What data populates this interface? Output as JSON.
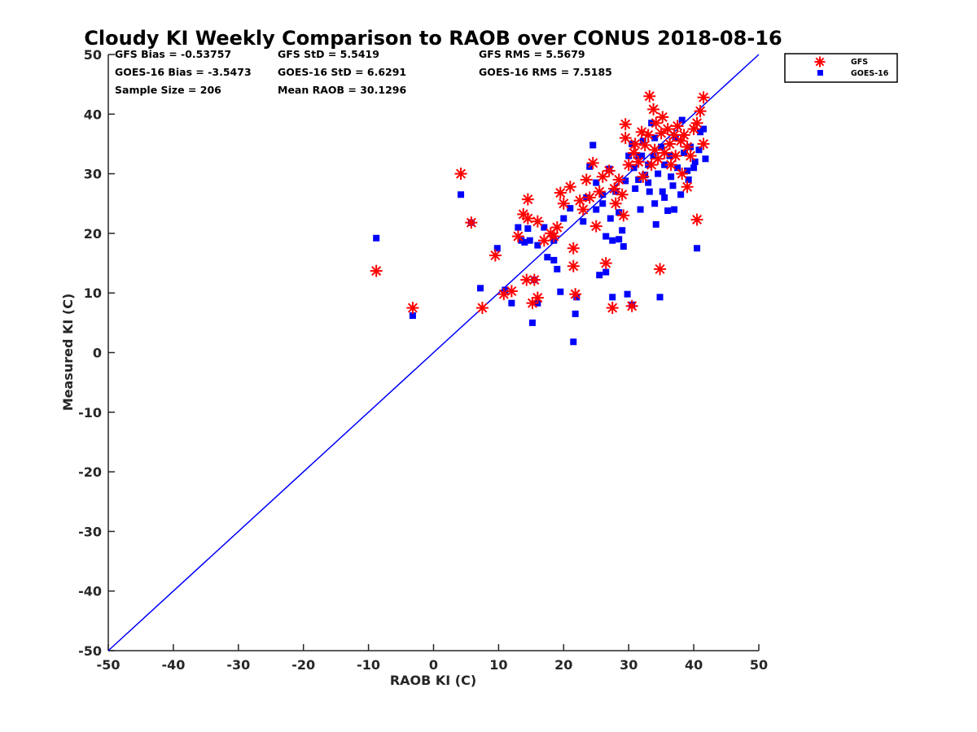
{
  "chart_data": {
    "type": "scatter",
    "title": "Cloudy KI Weekly Comparison to RAOB over CONUS 2018-08-16",
    "xlabel": "RAOB KI (C)",
    "ylabel": "Measured KI (C)",
    "xlim": [
      -50,
      50
    ],
    "ylim": [
      -50,
      50
    ],
    "xticks": [
      "-50",
      "-40",
      "-30",
      "-20",
      "-10",
      "0",
      "10",
      "20",
      "30",
      "40",
      "50"
    ],
    "yticks": [
      "-50",
      "-40",
      "-30",
      "-20",
      "-10",
      "0",
      "10",
      "20",
      "30",
      "40",
      "50"
    ],
    "grid": false,
    "legend_position": "top-right outside",
    "reference_line": {
      "name": "1:1",
      "x": [
        -50,
        50
      ],
      "y": [
        -50,
        50
      ],
      "color": "#0000ff"
    },
    "stats": [
      "GFS Bias = -0.53757",
      "GFS StD = 5.5419",
      "GFS RMS = 5.5679",
      "GOES-16 Bias = -3.5473",
      "GOES-16 StD = 6.6291",
      "GOES-16 RMS = 7.5185",
      "Sample Size = 206",
      "Mean RAOB = 30.1296"
    ],
    "series": [
      {
        "name": "GFS",
        "marker": "asterisk",
        "color": "#ff0000",
        "points": [
          [
            -8.8,
            13.7
          ],
          [
            -3.2,
            7.5
          ],
          [
            4.2,
            30
          ],
          [
            5.8,
            21.8
          ],
          [
            7.5,
            7.5
          ],
          [
            9.5,
            16.3
          ],
          [
            10.8,
            9.8
          ],
          [
            12,
            10.3
          ],
          [
            13,
            19.5
          ],
          [
            13.8,
            23.2
          ],
          [
            14.3,
            12.2
          ],
          [
            14.5,
            25.7
          ],
          [
            14.5,
            22.5
          ],
          [
            15.2,
            8.3
          ],
          [
            15.5,
            12.2
          ],
          [
            16,
            9.2
          ],
          [
            16,
            22
          ],
          [
            17,
            18.8
          ],
          [
            18,
            20
          ],
          [
            18.5,
            19.5
          ],
          [
            19,
            21
          ],
          [
            19.5,
            26.8
          ],
          [
            20,
            25
          ],
          [
            21,
            27.8
          ],
          [
            21.5,
            17.5
          ],
          [
            21.5,
            14.5
          ],
          [
            21.8,
            9.8
          ],
          [
            22.5,
            25.5
          ],
          [
            23,
            24
          ],
          [
            23.5,
            29
          ],
          [
            24,
            26
          ],
          [
            24.5,
            31.8
          ],
          [
            25,
            21.2
          ],
          [
            25.5,
            27
          ],
          [
            26,
            29.5
          ],
          [
            26.5,
            15
          ],
          [
            27,
            30.5
          ],
          [
            27.5,
            7.5
          ],
          [
            27.8,
            27.5
          ],
          [
            28,
            25
          ],
          [
            28.5,
            29
          ],
          [
            29,
            26.5
          ],
          [
            29.2,
            23
          ],
          [
            29.5,
            38.3
          ],
          [
            29.5,
            36
          ],
          [
            30,
            31.5
          ],
          [
            30.5,
            7.8
          ],
          [
            30.8,
            33.5
          ],
          [
            31,
            35
          ],
          [
            31.5,
            32
          ],
          [
            32,
            37
          ],
          [
            32.2,
            29.5
          ],
          [
            32.5,
            34.8
          ],
          [
            33,
            36.5
          ],
          [
            33.2,
            43
          ],
          [
            33.5,
            31.5
          ],
          [
            33.8,
            40.8
          ],
          [
            34,
            34
          ],
          [
            34.2,
            38.5
          ],
          [
            34.5,
            32.5
          ],
          [
            34.8,
            14
          ],
          [
            35,
            36.8
          ],
          [
            35.2,
            39.5
          ],
          [
            35.5,
            33.5
          ],
          [
            36,
            37.5
          ],
          [
            36.3,
            35
          ],
          [
            36.5,
            31.5
          ],
          [
            37,
            36.5
          ],
          [
            37.2,
            33
          ],
          [
            37.5,
            38
          ],
          [
            38,
            35.5
          ],
          [
            38.2,
            30
          ],
          [
            38.5,
            36.5
          ],
          [
            39,
            34.5
          ],
          [
            39,
            27.8
          ],
          [
            39.5,
            33
          ],
          [
            40,
            37.5
          ],
          [
            40.5,
            22.3
          ],
          [
            40.5,
            38.5
          ],
          [
            41,
            40.5
          ],
          [
            41.5,
            42.8
          ],
          [
            41.5,
            35
          ]
        ]
      },
      {
        "name": "GOES-16",
        "marker": "square",
        "color": "#0000ff",
        "points": [
          [
            -8.8,
            19.2
          ],
          [
            -3.2,
            6.2
          ],
          [
            4.2,
            26.5
          ],
          [
            5.8,
            21.8
          ],
          [
            7.2,
            10.8
          ],
          [
            9.8,
            17.5
          ],
          [
            11,
            10.5
          ],
          [
            12,
            8.3
          ],
          [
            13,
            21
          ],
          [
            13.5,
            18.8
          ],
          [
            14,
            18.5
          ],
          [
            14.5,
            20.8
          ],
          [
            14.8,
            18.8
          ],
          [
            15.2,
            5
          ],
          [
            15.5,
            12.2
          ],
          [
            16,
            8.3
          ],
          [
            16,
            18
          ],
          [
            17,
            21
          ],
          [
            17.5,
            16
          ],
          [
            18.5,
            18.8
          ],
          [
            18.5,
            15.5
          ],
          [
            19,
            14
          ],
          [
            19.5,
            10.2
          ],
          [
            20,
            22.5
          ],
          [
            21,
            24.2
          ],
          [
            21.5,
            1.8
          ],
          [
            21.8,
            6.5
          ],
          [
            22,
            9.3
          ],
          [
            23,
            22
          ],
          [
            23.5,
            26
          ],
          [
            24,
            31.2
          ],
          [
            24.5,
            34.8
          ],
          [
            25,
            24
          ],
          [
            25.5,
            13
          ],
          [
            26,
            26.5
          ],
          [
            26.5,
            19.5
          ],
          [
            26.5,
            13.5
          ],
          [
            27,
            30.8
          ],
          [
            27.5,
            9.3
          ],
          [
            27.5,
            18.8
          ],
          [
            28,
            27
          ],
          [
            28.5,
            19
          ],
          [
            29,
            20.5
          ],
          [
            29.2,
            17.8
          ],
          [
            29.5,
            28.8
          ],
          [
            29.8,
            9.8
          ],
          [
            30,
            33
          ],
          [
            30.5,
            8
          ],
          [
            30.8,
            31
          ],
          [
            31,
            27.5
          ],
          [
            31.5,
            29
          ],
          [
            31.8,
            24
          ],
          [
            32,
            33
          ],
          [
            32.2,
            35.5
          ],
          [
            32.5,
            29.8
          ],
          [
            33,
            31.5
          ],
          [
            33.2,
            27
          ],
          [
            33.5,
            38.5
          ],
          [
            33.8,
            33
          ],
          [
            34,
            25
          ],
          [
            34.2,
            21.5
          ],
          [
            34.5,
            30
          ],
          [
            34.8,
            9.3
          ],
          [
            35,
            34.5
          ],
          [
            35.2,
            27
          ],
          [
            35.5,
            31.5
          ],
          [
            36,
            23.8
          ],
          [
            36.3,
            33
          ],
          [
            36.5,
            29.5
          ],
          [
            37,
            24
          ],
          [
            37.2,
            36
          ],
          [
            37.5,
            31
          ],
          [
            38,
            26.5
          ],
          [
            38.2,
            39
          ],
          [
            38.5,
            33.5
          ],
          [
            39,
            30.5
          ],
          [
            39.2,
            29
          ],
          [
            39.5,
            34.5
          ],
          [
            40,
            31
          ],
          [
            40.2,
            32
          ],
          [
            40.5,
            17.5
          ],
          [
            40.8,
            34
          ],
          [
            41,
            37
          ],
          [
            41.5,
            37.5
          ],
          [
            41.8,
            32.5
          ],
          [
            30.5,
            35
          ],
          [
            31.5,
            33
          ],
          [
            33,
            28.5
          ],
          [
            34,
            36
          ],
          [
            35.5,
            26
          ],
          [
            36.8,
            28
          ],
          [
            28.5,
            23.5
          ],
          [
            27.2,
            22.5
          ],
          [
            26,
            25
          ],
          [
            25,
            28.5
          ]
        ]
      }
    ]
  }
}
